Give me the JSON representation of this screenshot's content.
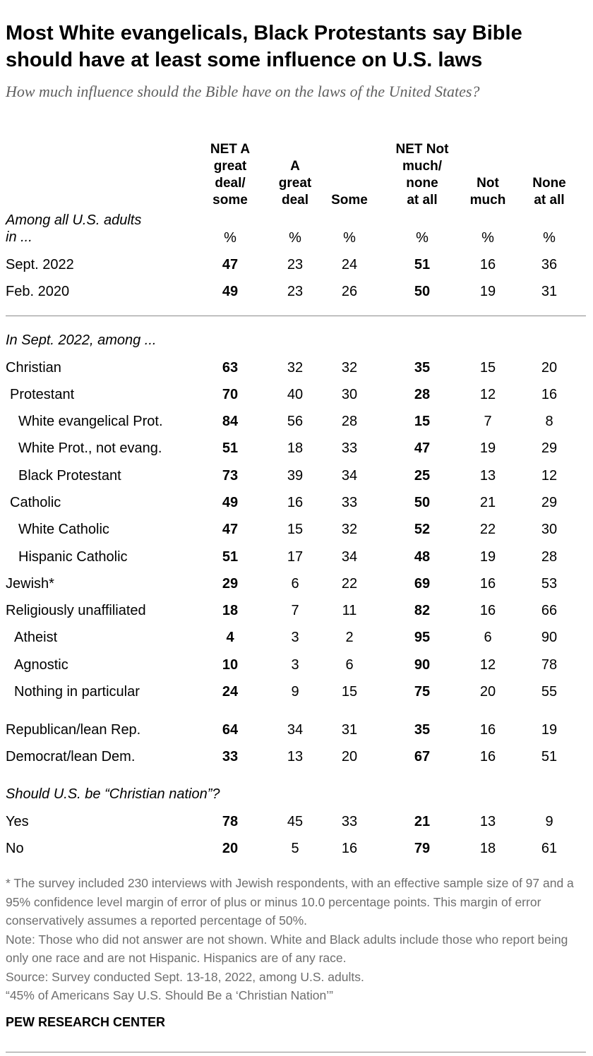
{
  "title": "Most White evangelicals, Black Protestants say Bible should have at least some influence on U.S. laws",
  "subtitle": "How much influence should the Bible have on the laws of the United States?",
  "chart_data": {
    "type": "table",
    "columns": [
      "NET A great deal/ some",
      "A great deal",
      "Some",
      "NET Not much/ none at all",
      "Not much",
      "None at all"
    ],
    "column_lines": [
      [
        "NET A",
        "great",
        "deal/",
        "some"
      ],
      [
        "A",
        "great",
        "deal"
      ],
      [
        "Some"
      ],
      [
        "NET Not",
        "much/",
        "none",
        "at all"
      ],
      [
        "Not",
        "much"
      ],
      [
        "None",
        "at all"
      ]
    ],
    "bold_columns": [
      0,
      3
    ],
    "sections": [
      {
        "heading_lines": [
          "Among all U.S. adults",
          "in ..."
        ],
        "unit_row": [
          "%",
          "%",
          "%",
          "%",
          "%",
          "%"
        ],
        "rows": [
          {
            "label": "Sept. 2022",
            "values": [
              47,
              23,
              24,
              51,
              16,
              36
            ]
          },
          {
            "label": "Feb. 2020",
            "values": [
              49,
              23,
              26,
              50,
              19,
              31
            ]
          }
        ]
      },
      {
        "heading_lines": [
          "In Sept. 2022, among ..."
        ],
        "rows": [
          {
            "label": "Christian",
            "values": [
              63,
              32,
              32,
              35,
              15,
              20
            ]
          },
          {
            "label": "Protestant",
            "values": [
              70,
              40,
              30,
              28,
              12,
              16
            ]
          },
          {
            "label": "White evangelical Prot.",
            "values": [
              84,
              56,
              28,
              15,
              7,
              8
            ]
          },
          {
            "label": "White Prot., not evang.",
            "values": [
              51,
              18,
              33,
              47,
              19,
              29
            ]
          },
          {
            "label": "Black Protestant",
            "values": [
              73,
              39,
              34,
              25,
              13,
              12
            ]
          },
          {
            "label": "Catholic",
            "values": [
              49,
              16,
              33,
              50,
              21,
              29
            ]
          },
          {
            "label": "White Catholic",
            "values": [
              47,
              15,
              32,
              52,
              22,
              30
            ]
          },
          {
            "label": "Hispanic Catholic",
            "values": [
              51,
              17,
              34,
              48,
              19,
              28
            ]
          },
          {
            "label": "Jewish*",
            "values": [
              29,
              6,
              22,
              69,
              16,
              53
            ]
          },
          {
            "label": "Religiously unaffiliated",
            "values": [
              18,
              7,
              11,
              82,
              16,
              66
            ]
          },
          {
            "label": "Atheist",
            "values": [
              4,
              3,
              2,
              95,
              6,
              90
            ]
          },
          {
            "label": "Agnostic",
            "values": [
              10,
              3,
              6,
              90,
              12,
              78
            ]
          },
          {
            "label": "Nothing in particular",
            "values": [
              24,
              9,
              15,
              75,
              20,
              55
            ]
          },
          {
            "label": "Republican/lean Rep.",
            "values": [
              64,
              34,
              31,
              35,
              16,
              19
            ]
          },
          {
            "label": "Democrat/lean Dem.",
            "values": [
              33,
              13,
              20,
              67,
              16,
              51
            ]
          }
        ]
      },
      {
        "heading_lines": [
          "Should U.S. be “Christian nation”?"
        ],
        "rows": [
          {
            "label": "Yes",
            "values": [
              78,
              45,
              33,
              21,
              13,
              9
            ]
          },
          {
            "label": "No",
            "values": [
              20,
              5,
              16,
              79,
              18,
              61
            ]
          }
        ]
      }
    ]
  },
  "notes": [
    "* The survey included 230 interviews with Jewish respondents, with an effective sample size of 97 and a 95% confidence level margin of error of plus or minus 10.0 percentage points. This margin of error conservatively assumes a reported percentage of 50%.",
    "Note: Those who did not answer are not shown. White and Black adults include those who report being only one race and are not Hispanic. Hispanics are of any race.",
    "Source: Survey conducted Sept. 13-18, 2022, among U.S. adults.",
    "“45% of Americans Say U.S. Should Be a ‘Christian Nation’”"
  ],
  "brand": "PEW RESEARCH CENTER"
}
